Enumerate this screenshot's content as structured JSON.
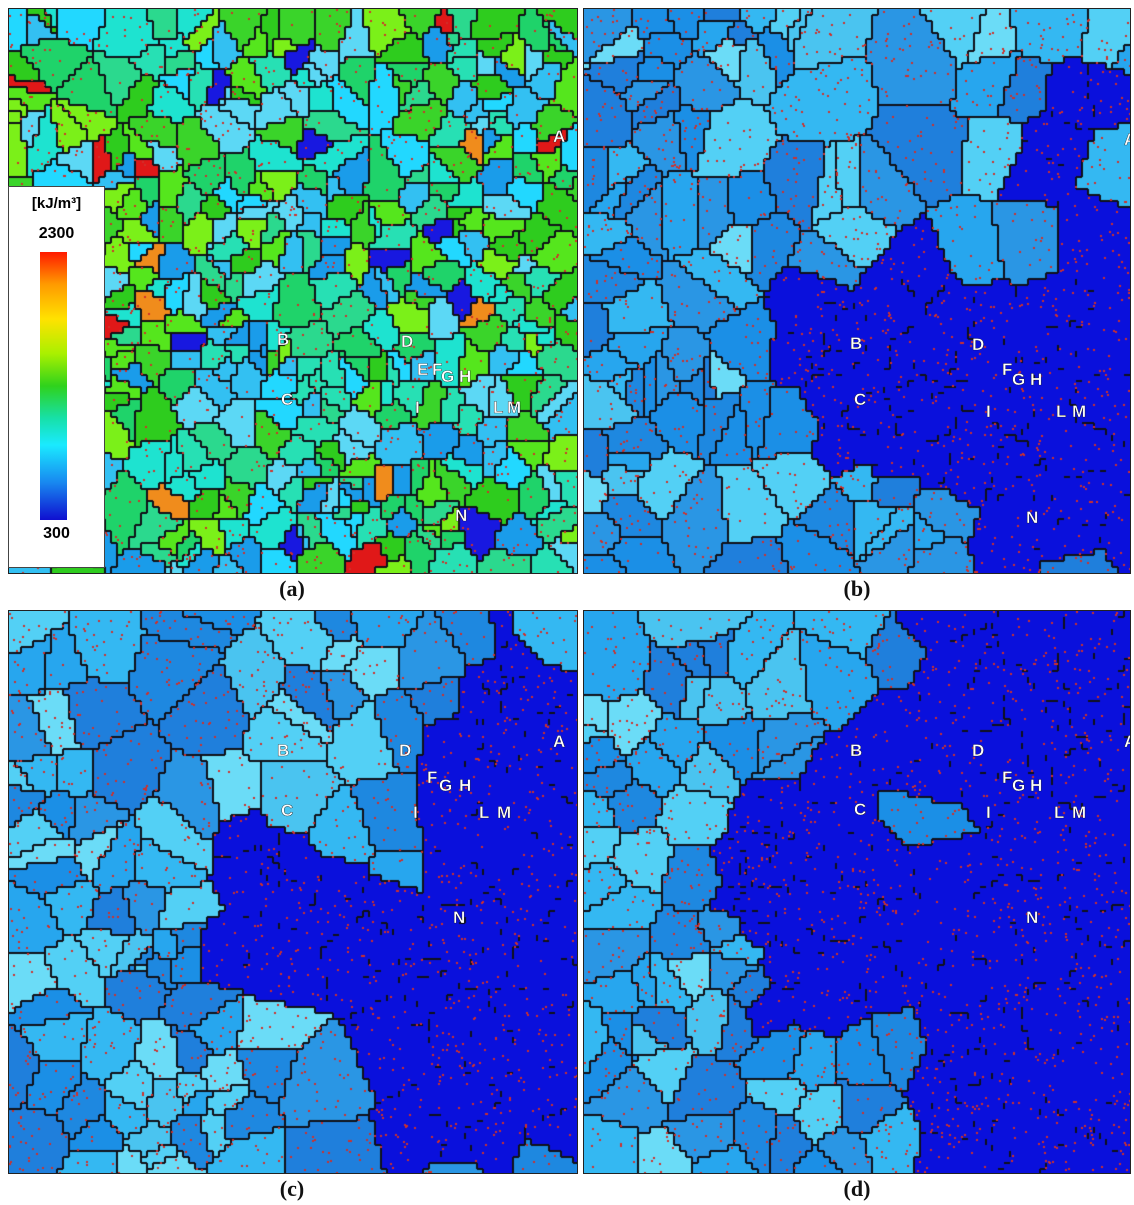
{
  "figure": {
    "legend": {
      "unit_text": "[kJ/m³]",
      "max_label": "2300",
      "min_label": "300",
      "colormap": [
        "#ff1a00",
        "#ff9a00",
        "#ffe200",
        "#a9f000",
        "#2fd21c",
        "#17e0a8",
        "#1aeaff",
        "#1888f0",
        "#0f0fd0"
      ]
    },
    "panels": [
      {
        "caption": "(a)",
        "labels": [
          "A",
          "B",
          "C",
          "D",
          "E",
          "F",
          "G",
          "H",
          "I",
          "L",
          "M",
          "N"
        ],
        "palette": [
          "#2ecc1e",
          "#3ad42a",
          "#1fd36a",
          "#27e0b4",
          "#22d8ff",
          "#33c0f2",
          "#5cd8f5",
          "#1a9cea",
          "#7bf019",
          "#55e61d",
          "#2bd98e",
          "#1ee3d0"
        ],
        "rare_colors": [
          "#f08c1c",
          "#e01818",
          "#1818e0"
        ]
      },
      {
        "caption": "(b)",
        "labels": [
          "A",
          "B",
          "C",
          "D",
          "F",
          "G",
          "H",
          "I",
          "L",
          "M",
          "N"
        ],
        "palette": [
          "#1b8fe6",
          "#27a6ee",
          "#34b8f2",
          "#4ac4f0",
          "#1f7fdc",
          "#2a96e4",
          "#53d0f5",
          "#1e88e0",
          "#6bdcf7"
        ],
        "grown_color": "#0a10dc"
      },
      {
        "caption": "(c)",
        "labels": [
          "A",
          "B",
          "C",
          "D",
          "F",
          "G",
          "H",
          "I",
          "L",
          "M",
          "N"
        ],
        "palette": [
          "#1b8fe6",
          "#27a6ee",
          "#34b8f2",
          "#4ac4f0",
          "#1f7fdc",
          "#2a96e4",
          "#53d0f5",
          "#1e88e0",
          "#6bdcf7"
        ],
        "grown_color": "#0a10dc"
      },
      {
        "caption": "(d)",
        "labels": [
          "A",
          "B",
          "C",
          "D",
          "F",
          "G",
          "H",
          "I",
          "L",
          "M",
          "N"
        ],
        "palette": [
          "#1b8fe6",
          "#27a6ee",
          "#34b8f2",
          "#4ac4f0",
          "#1f7fdc",
          "#2a96e4",
          "#53d0f5",
          "#1e88e0",
          "#6bdcf7"
        ],
        "grown_color": "#0a10dc"
      }
    ]
  }
}
